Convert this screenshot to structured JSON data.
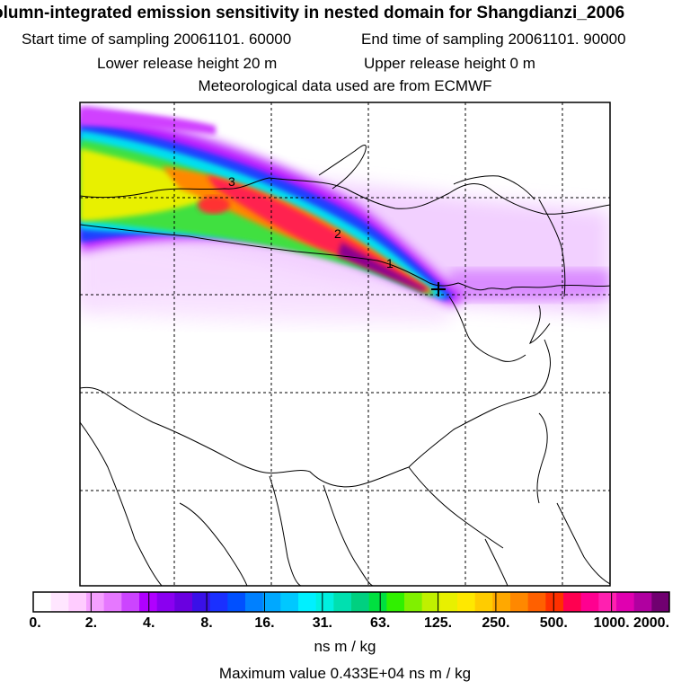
{
  "title": "olumn-integrated emission sensitivity in nested domain for Shangdianzi_2006",
  "sampling": {
    "start": "Start time of sampling 20061101. 60000",
    "end": "End time of sampling 20061101. 90000"
  },
  "release": {
    "lower": "Lower release height   20 m",
    "upper": "Upper release height    0 m"
  },
  "met_note": "Meteorological data used are from ECMWF",
  "contour_labels": [
    "3",
    "2",
    "1"
  ],
  "colorbar": {
    "tick_labels": [
      "0.",
      "2.",
      "4.",
      "8.",
      "16.",
      "31.",
      "63.",
      "125.",
      "250.",
      "500.",
      "1000.",
      "2000."
    ],
    "colors": [
      "#ffffff",
      "#ffe6ff",
      "#ffccff",
      "#f5a0ff",
      "#e678ff",
      "#cc44ff",
      "#b000ff",
      "#8a00f0",
      "#6a00e0",
      "#3a10e8",
      "#1a30ff",
      "#0050ff",
      "#0080ff",
      "#00a8ff",
      "#00c8ff",
      "#00f0ff",
      "#00f0e0",
      "#00e0b0",
      "#00d080",
      "#00e040",
      "#30f000",
      "#80f000",
      "#c0f000",
      "#e8f000",
      "#ffe800",
      "#ffcc00",
      "#ffa800",
      "#ff8800",
      "#ff6000",
      "#ff3000",
      "#ff0050",
      "#ff0090",
      "#ff20b0",
      "#e000b0",
      "#b000a0",
      "#700070"
    ],
    "unit": "ns m / kg"
  },
  "max_value_text": "Maximum value  0.433E+04 ns m / kg",
  "receptor": "Shangdianzi"
}
